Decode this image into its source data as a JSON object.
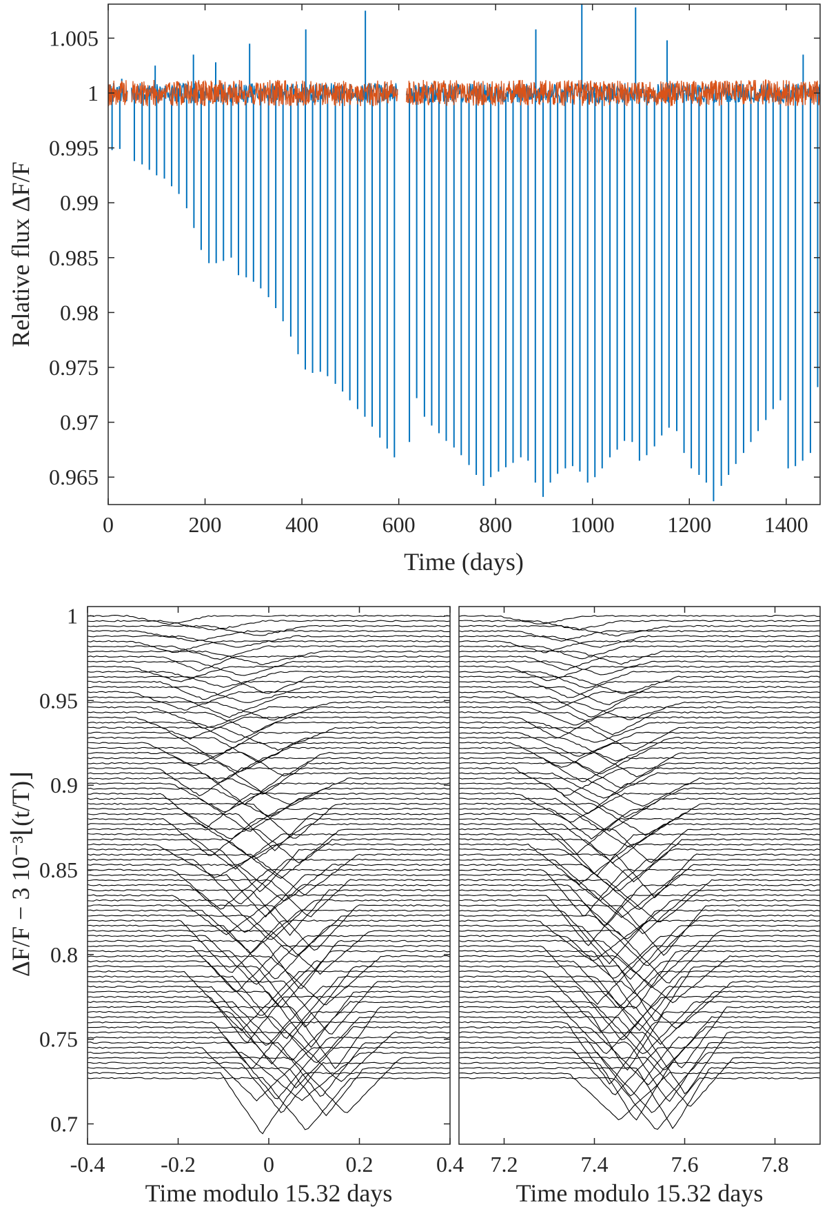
{
  "chart_data": [
    {
      "type": "line",
      "panel": "top",
      "xlabel": "Time (days)",
      "ylabel": "Relative flux ΔF/F",
      "xlim": [
        0,
        1470
      ],
      "ylim": [
        0.9625,
        1.0081
      ],
      "xticks": [
        0,
        200,
        400,
        600,
        800,
        1000,
        1200,
        1400
      ],
      "xtick_labels": [
        "0",
        "200",
        "400",
        "600",
        "800",
        "1000",
        "1200",
        "1400"
      ],
      "yticks": [
        0.965,
        0.97,
        0.975,
        0.98,
        0.985,
        0.99,
        0.995,
        1,
        1.005
      ],
      "ytick_labels": [
        "0.965",
        "0.97",
        "0.975",
        "0.98",
        "0.985",
        "0.99",
        "0.995",
        "1",
        "1.005"
      ],
      "grid": false,
      "transit_period_days": 15.32,
      "data_gaps_days": [
        [
          40,
          48
        ],
        [
          598,
          615
        ]
      ],
      "series": [
        {
          "color": "#0072BD",
          "baseline": 1.0,
          "transit_dip_minima": [
            [
              8,
              0.9948
            ],
            [
              24,
              0.9949
            ],
            [
              54,
              0.9938
            ],
            [
              70,
              0.9935
            ],
            [
              85,
              0.993
            ],
            [
              100,
              0.9925
            ],
            [
              116,
              0.9922
            ],
            [
              131,
              0.9915
            ],
            [
              146,
              0.9908
            ],
            [
              162,
              0.9895
            ],
            [
              177,
              0.9877
            ],
            [
              192,
              0.9857
            ],
            [
              208,
              0.9845
            ],
            [
              223,
              0.9845
            ],
            [
              238,
              0.9847
            ],
            [
              254,
              0.985
            ],
            [
              269,
              0.9834
            ],
            [
              285,
              0.9832
            ],
            [
              300,
              0.9828
            ],
            [
              315,
              0.9822
            ],
            [
              331,
              0.9814
            ],
            [
              346,
              0.9804
            ],
            [
              361,
              0.9792
            ],
            [
              377,
              0.9778
            ],
            [
              392,
              0.9762
            ],
            [
              407,
              0.9748
            ],
            [
              422,
              0.9745
            ],
            [
              438,
              0.9746
            ],
            [
              453,
              0.9742
            ],
            [
              469,
              0.9735
            ],
            [
              484,
              0.9728
            ],
            [
              499,
              0.972
            ],
            [
              515,
              0.9712
            ],
            [
              530,
              0.9705
            ],
            [
              545,
              0.9696
            ],
            [
              561,
              0.9686
            ],
            [
              576,
              0.9676
            ],
            [
              591,
              0.9668
            ],
            [
              622,
              0.9682
            ],
            [
              637,
              0.9722
            ],
            [
              653,
              0.9705
            ],
            [
              668,
              0.9697
            ],
            [
              683,
              0.969
            ],
            [
              698,
              0.9683
            ],
            [
              714,
              0.9677
            ],
            [
              729,
              0.967
            ],
            [
              745,
              0.9661
            ],
            [
              760,
              0.9652
            ],
            [
              775,
              0.9642
            ],
            [
              790,
              0.965
            ],
            [
              806,
              0.9655
            ],
            [
              821,
              0.9659
            ],
            [
              836,
              0.9663
            ],
            [
              852,
              0.9668
            ],
            [
              867,
              0.9665
            ],
            [
              882,
              0.9645
            ],
            [
              898,
              0.9632
            ],
            [
              913,
              0.9645
            ],
            [
              928,
              0.9653
            ],
            [
              944,
              0.9658
            ],
            [
              959,
              0.966
            ],
            [
              974,
              0.9655
            ],
            [
              990,
              0.9645
            ],
            [
              1005,
              0.965
            ],
            [
              1020,
              0.9658
            ],
            [
              1036,
              0.9668
            ],
            [
              1051,
              0.9675
            ],
            [
              1066,
              0.9683
            ],
            [
              1082,
              0.9682
            ],
            [
              1097,
              0.9665
            ],
            [
              1112,
              0.967
            ],
            [
              1128,
              0.9678
            ],
            [
              1143,
              0.9688
            ],
            [
              1158,
              0.9695
            ],
            [
              1174,
              0.9692
            ],
            [
              1189,
              0.9672
            ],
            [
              1204,
              0.9658
            ],
            [
              1220,
              0.9652
            ],
            [
              1235,
              0.9645
            ],
            [
              1250,
              0.9628
            ],
            [
              1266,
              0.9642
            ],
            [
              1281,
              0.9652
            ],
            [
              1296,
              0.9662
            ],
            [
              1312,
              0.9672
            ],
            [
              1327,
              0.9682
            ],
            [
              1342,
              0.9692
            ],
            [
              1358,
              0.9702
            ],
            [
              1373,
              0.9712
            ],
            [
              1388,
              0.972
            ],
            [
              1404,
              0.9658
            ],
            [
              1419,
              0.966
            ],
            [
              1434,
              0.9665
            ],
            [
              1450,
              0.9672
            ],
            [
              1465,
              0.9732
            ]
          ],
          "flare_maxima": [
            [
              28,
              1.0013
            ],
            [
              97,
              1.0025
            ],
            [
              176,
              1.0035
            ],
            [
              222,
              1.0028
            ],
            [
              292,
              1.0045
            ],
            [
              408,
              1.0058
            ],
            [
              531,
              1.0075
            ],
            [
              883,
              1.0058
            ],
            [
              978,
              1.0081
            ],
            [
              1089,
              1.0078
            ],
            [
              1154,
              1.0048
            ],
            [
              1435,
              1.0035
            ]
          ]
        },
        {
          "color": "#D95319",
          "baseline": 1.0,
          "noise_band": [
            0.9988,
            1.0012
          ]
        }
      ]
    },
    {
      "type": "line",
      "panel": "bottom-left",
      "xlabel": "Time modulo 15.32 days",
      "ylabel": "ΔF/F − 3 10⁻³⌊(t/T)⌋",
      "xlim": [
        -0.4,
        0.4
      ],
      "ylim": [
        0.688,
        1.0055
      ],
      "xticks": [
        -0.4,
        -0.2,
        0,
        0.2,
        0.4
      ],
      "xtick_labels": [
        "-0.4",
        "-0.2",
        "0",
        "0.2",
        "0.4"
      ],
      "yticks": [
        0.7,
        0.75,
        0.8,
        0.85,
        0.9,
        0.95,
        1
      ],
      "ytick_labels": [
        "0.7",
        "0.75",
        "0.8",
        "0.85",
        "0.9",
        "0.95",
        "1"
      ],
      "grid": false,
      "line_color": "#000000",
      "folded_curves": {
        "count": 92,
        "first_offset": 1.0,
        "offset_step": -0.003,
        "transit_start_center": -0.22,
        "transit_end_center": 0.18,
        "transit_half_width": [
          0.08,
          0.13
        ],
        "transit_depth": [
          0.005,
          0.037
        ]
      }
    },
    {
      "type": "line",
      "panel": "bottom-right",
      "xlabel": "Time modulo 15.32 days",
      "xlim": [
        7.1,
        7.9
      ],
      "ylim": [
        0.688,
        1.0055
      ],
      "xticks": [
        7.2,
        7.4,
        7.6,
        7.8
      ],
      "xtick_labels": [
        "7.2",
        "7.4",
        "7.6",
        "7.8"
      ],
      "grid": false,
      "line_color": "#000000",
      "folded_curves": {
        "count": 92,
        "first_offset": 1.0,
        "offset_step": -0.003,
        "transit_start_center": 7.28,
        "transit_end_center": 7.62,
        "transit_half_width": [
          0.08,
          0.13
        ],
        "transit_depth": [
          0.005,
          0.037
        ]
      }
    }
  ]
}
